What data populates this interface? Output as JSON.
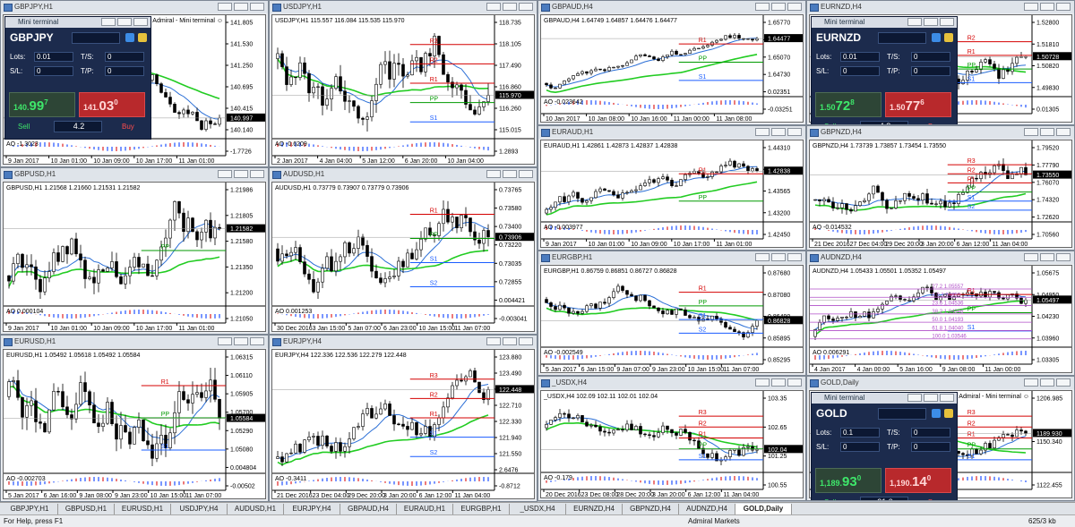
{
  "windows": [
    {
      "title": "GBPJPY,H1",
      "header": "GBPJPY,H1 140.968 141.141 140.841 140.997",
      "expert": "Admiral - Mini terminal ☺",
      "prices": [
        "141.805",
        "141.530",
        "141.250",
        "140.695",
        "140.415",
        "140.140",
        "-1.7726"
      ],
      "current_price": "140.997",
      "times": [
        "9 Jan 2017",
        "10 Jan 01:00",
        "10 Jan 09:00",
        "10 Jan 17:00",
        "11 Jan 01:00"
      ],
      "levels": [],
      "ao": "AO -1.3023",
      "terminal": {
        "title": "Mini terminal",
        "symbol": "GBPJPY",
        "lots_label": "Lots:",
        "lots": "0.01",
        "ts_label": "T/S:",
        "ts": "0",
        "sl_label": "S/L:",
        "sl": "0",
        "tp_label": "T/P:",
        "tp": "0",
        "sell": [
          "140.",
          "99",
          "7"
        ],
        "buy": [
          "141.",
          "03",
          "0"
        ],
        "sell_label": "Sell",
        "spread": "4.2",
        "buy_label": "Buy"
      }
    },
    {
      "title": "USDJPY,H1",
      "header": "USDJPY,H1 115.557 116.084 115.535 115.970",
      "prices": [
        "118.735",
        "118.105",
        "117.490",
        "116.860",
        "116.260",
        "115.015",
        "1.2893"
      ],
      "current_price": "115.970",
      "times": [
        "2 Jan 2017",
        "4 Jan 04:00",
        "5 Jan 12:00",
        "6 Jan 20:00",
        "10 Jan 04:00"
      ],
      "levels": [
        "R3",
        "R2",
        "R1",
        "PP",
        "S1"
      ],
      "ao": "AO -0.6209"
    },
    {
      "title": "GBPUSD,H1",
      "header": "GBPUSD,H1 1.21568 1.21660 1.21531 1.21582",
      "prices": [
        "1.21986",
        "1.21805",
        "1.21580",
        "1.21350",
        "1.21200",
        "1.21050"
      ],
      "current_price": "1.21582",
      "times": [
        "9 Jan 2017",
        "10 Jan 01:00",
        "10 Jan 09:00",
        "10 Jan 17:00",
        "11 Jan 01:00"
      ],
      "levels": [
        "PP"
      ],
      "ao": "AO 0.000104"
    },
    {
      "title": "AUDUSD,H1",
      "header": "AUDUSD,H1 0.73779 0.73907 0.73779 0.73906",
      "prices": [
        "0.73765",
        "0.73580",
        "0.73400",
        "0.73220",
        "0.73035",
        "0.72855",
        "0.004421",
        "-0.003041"
      ],
      "current_price": "0.73906",
      "times": [
        "30 Dec 2016",
        "3 Jan 15:00",
        "5 Jan 07:00",
        "6 Jan 23:00",
        "10 Jan 15:00",
        "11 Jan 07:00"
      ],
      "levels": [
        "R1",
        "PP",
        "S1",
        "S2"
      ],
      "ao": "AO 0.001253"
    },
    {
      "title": "EURUSD,H1",
      "header": "EURUSD,H1 1.05492 1.05618 1.05492 1.05584",
      "prices": [
        "1.06315",
        "1.06110",
        "1.05905",
        "1.05700",
        "1.05290",
        "1.05080",
        "0.004804",
        "-0.00502"
      ],
      "current_price": "1.05584",
      "times": [
        "5 Jan 2017",
        "6 Jan 16:00",
        "9 Jan 08:00",
        "9 Jan 23:00",
        "10 Jan 15:00",
        "11 Jan 07:00"
      ],
      "levels": [
        "R1",
        "PP",
        "S1"
      ],
      "ao": "AO -0.002703"
    },
    {
      "title": "EURJPY,H4",
      "header": "EURJPY,H4 122.336 122.536 122.279 122.448",
      "prices": [
        "123.880",
        "123.490",
        "123.100",
        "122.710",
        "122.330",
        "121.940",
        "121.550",
        "2.6476",
        "-0.8712"
      ],
      "current_price": "122.448",
      "times": [
        "21 Dec 2016",
        "23 Dec 04:00",
        "29 Dec 20:00",
        "3 Jan 20:00",
        "6 Jan 12:00",
        "11 Jan 04:00"
      ],
      "levels": [
        "R3",
        "R2",
        "R1",
        "S1",
        "S2"
      ],
      "ao": "AO -0.3411"
    },
    {
      "title": "GBPAUD,H4",
      "header": "GBPAUD,H4 1.64749 1.64857 1.64476 1.64477",
      "prices": [
        "1.65770",
        "1.65420",
        "1.65070",
        "1.64730",
        "0.02351",
        "-0.03251"
      ],
      "current_price": "1.64477",
      "times": [
        "10 Jan 2017",
        "10 Jan 08:00",
        "10 Jan 16:00",
        "11 Jan 00:00",
        "11 Jan 08:00"
      ],
      "levels": [
        "R1",
        "PP",
        "S1"
      ],
      "ao": "AO -0.023642"
    },
    {
      "title": "EURNZD,H4",
      "header": "EURNZD,H4 1.50762 1.50910 1.50629 1.50728",
      "prices": [
        "1.52800",
        "1.51810",
        "1.50820",
        "1.49830",
        "0.01305"
      ],
      "current_price": "1.50728",
      "times": [
        "10 Jan 12:00",
        "11 Jan 04:00"
      ],
      "levels": [
        "R2",
        "R1",
        "PP",
        "S1"
      ],
      "ao": "AO -0.00474",
      "terminal": {
        "title": "Mini terminal",
        "symbol": "EURNZD",
        "lots_label": "Lots:",
        "lots": "0.01",
        "ts_label": "T/S:",
        "ts": "0",
        "sl_label": "S/L:",
        "sl": "0",
        "tp_label": "T/P:",
        "tp": "0",
        "sell": [
          "1.50",
          "72",
          "8"
        ],
        "buy": [
          "1.50",
          "77",
          "6"
        ],
        "sell_label": "Sell",
        "spread": "4.8",
        "buy_label": "Buy"
      }
    },
    {
      "title": "EURAUD,H1",
      "header": "EURAUD,H1 1.42861 1.42873 1.42837 1.42838",
      "prices": [
        "1.44310",
        "1.43940",
        "1.43565",
        "1.43200",
        "1.42450"
      ],
      "current_price": "1.42838",
      "times": [
        "9 Jan 2017",
        "10 Jan 01:00",
        "10 Jan 09:00",
        "10 Jan 17:00",
        "11 Jan 01:00"
      ],
      "levels": [
        "R1",
        "PP"
      ],
      "ao": "AO -0.003977"
    },
    {
      "title": "GBPNZD,H4",
      "header": "GBPNZD,H4 1.73739 1.73857 1.73454 1.73550",
      "prices": [
        "1.79520",
        "1.77790",
        "1.76070",
        "1.74320",
        "1.72620",
        "1.70560"
      ],
      "current_price": "1.73550",
      "times": [
        "21 Dec 2016",
        "27 Dec 04:00",
        "29 Dec 20:00",
        "3 Jan 20:00",
        "6 Jan 12:00",
        "11 Jan 04:00"
      ],
      "levels": [
        "R3",
        "R2",
        "R1",
        "PP",
        "S1",
        "S2"
      ],
      "ao": "AO -0.014532"
    },
    {
      "title": "EURGBP,H1",
      "header": "EURGBP,H1 0.86759 0.86851 0.86727 0.86828",
      "prices": [
        "0.87680",
        "0.87080",
        "0.86490",
        "0.85895",
        "0.85295"
      ],
      "current_price": "0.86828",
      "times": [
        "5 Jan 2017",
        "6 Jan 15:00",
        "9 Jan 07:00",
        "9 Jan 23:00",
        "10 Jan 15:00",
        "11 Jan 07:00"
      ],
      "levels": [
        "R1",
        "PP",
        "S1",
        "S2"
      ],
      "ao": "AO -0.002549"
    },
    {
      "title": "AUDNZD,H4",
      "header": "AUDNZD,H4 1.05433 1.05501 1.05352 1.05497",
      "prices": [
        "1.05675",
        "1.04950",
        "1.04230",
        "1.03960",
        "1.03305"
      ],
      "current_price": "1.05497",
      "times": [
        "4 Jan 2017",
        "4 Jan 00:00",
        "5 Jan 16:00",
        "9 Jan 08:00",
        "11 Jan 00:00"
      ],
      "levels": [
        "R1",
        "PP",
        "S1"
      ],
      "fib": [
        "27.2 1.05557",
        "0.0 1.04850",
        "23.6 1.04536",
        "38.2 1.04346",
        "50.0 1.04193",
        "61.8 1.04040",
        "100.0 1.03546"
      ],
      "ao": "AO 0.006291"
    },
    {
      "title": "_USDX,H4",
      "header": "_USDX,H4 102.09 102.11 102.01 102.04",
      "prices": [
        "103.35",
        "102.65",
        "101.25",
        "100.55"
      ],
      "current_price": "102.04",
      "times": [
        "20 Dec 2016",
        "23 Dec 08:00",
        "28 Dec 20:00",
        "3 Jan 20:00",
        "6 Jan 12:00",
        "11 Jan 04:00"
      ],
      "levels": [
        "R3",
        "R2",
        "R1",
        "PP",
        "S1"
      ],
      "ao": "AO -0.179"
    },
    {
      "title": "GOLD,Daily",
      "header": "GOLD,Daily 1187.670 1199.090 1185.590 1189.930",
      "expert": "Admiral - Mini terminal ☺",
      "prices": [
        "1206.985",
        "1150.340",
        "1122.455"
      ],
      "current_price": "1189.930",
      "times": [
        "Jan 2017"
      ],
      "levels": [
        "R3",
        "R2",
        "R1",
        "PP",
        "S1"
      ],
      "ao": "AO -2.51",
      "terminal": {
        "title": "Mini terminal",
        "symbol": "GOLD",
        "lots_label": "Lots:",
        "lots": "0.1",
        "ts_label": "T/S:",
        "ts": "0",
        "sl_label": "S/L:",
        "sl": "0",
        "tp_label": "T/P:",
        "tp": "0",
        "sell": [
          "1,189.",
          "93",
          "0"
        ],
        "buy": [
          "1,190.",
          "14",
          "0"
        ],
        "sell_label": "Sell",
        "spread": "21.0",
        "buy_label": "Buy"
      }
    }
  ],
  "tabs": [
    {
      "label": "GBPJPY,H1"
    },
    {
      "label": "GBPUSD,H1"
    },
    {
      "label": "EURUSD,H1"
    },
    {
      "label": "USDJPY,H4"
    },
    {
      "label": "AUDUSD,H1"
    },
    {
      "label": "EURJPY,H4"
    },
    {
      "label": "GBPAUD,H4"
    },
    {
      "label": "EURAUD,H1"
    },
    {
      "label": "EURGBP,H1"
    },
    {
      "label": "_USDX,H4"
    },
    {
      "label": "EURNZD,H4"
    },
    {
      "label": "GBPNZD,H4"
    },
    {
      "label": "AUDNZD,H4"
    },
    {
      "label": "GOLD,Daily",
      "active": true
    }
  ],
  "status": {
    "help": "For Help, press F1",
    "broker": "Admiral Markets",
    "traffic": "625/3 kb"
  }
}
